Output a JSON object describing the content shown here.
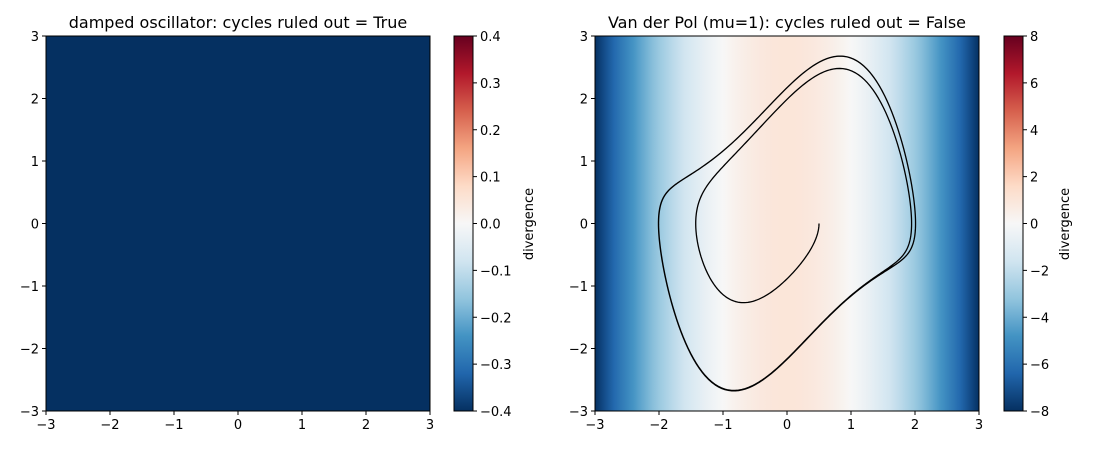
{
  "chart_data": [
    {
      "type": "heatmap",
      "title": "damped oscillator: cycles ruled out = True",
      "x": [
        -3,
        -2,
        -1,
        0,
        1,
        2,
        3
      ],
      "xlim": [
        -3,
        3
      ],
      "ylim": [
        -3,
        3
      ],
      "xticks": [
        "−3",
        "−2",
        "−1",
        "0",
        "1",
        "2",
        "3"
      ],
      "yticks": [
        "−3",
        "−2",
        "−1",
        "0",
        "1",
        "2",
        "3"
      ],
      "divergence_formula": "constant",
      "divergence_value": -0.5,
      "colormap": "RdBu_r",
      "colorbar": {
        "label": "divergence",
        "range": [
          -0.4,
          0.4
        ],
        "ticks": [
          "−0.4",
          "−0.3",
          "−0.2",
          "−0.1",
          "0.0",
          "0.1",
          "0.2",
          "0.3",
          "0.4"
        ],
        "tick_values": [
          -0.4,
          -0.3,
          -0.2,
          -0.1,
          0.0,
          0.1,
          0.2,
          0.3,
          0.4
        ]
      },
      "grid": false
    },
    {
      "type": "heatmap",
      "title": "Van der Pol (mu=1): cycles ruled out = False",
      "x": [
        -3,
        -2,
        -1,
        0,
        1,
        2,
        3
      ],
      "xlim": [
        -3,
        3
      ],
      "ylim": [
        -3,
        3
      ],
      "xticks": [
        "−3",
        "−2",
        "−1",
        "0",
        "1",
        "2",
        "3"
      ],
      "yticks": [
        "−3",
        "−2",
        "−1",
        "0",
        "1",
        "2",
        "3"
      ],
      "divergence_formula": "mu*(1 - x^2)",
      "mu": 1,
      "colormap": "RdBu_r",
      "colorbar": {
        "label": "divergence",
        "range": [
          -8,
          8
        ],
        "ticks": [
          "−8",
          "−6",
          "−4",
          "−2",
          "0",
          "2",
          "4",
          "6",
          "8"
        ],
        "tick_values": [
          -8,
          -6,
          -4,
          -2,
          0,
          2,
          4,
          6,
          8
        ]
      },
      "trajectory": {
        "model": "van der pol",
        "start": [
          0.5,
          0.0
        ],
        "line_color": "#000000"
      },
      "grid": false
    }
  ]
}
